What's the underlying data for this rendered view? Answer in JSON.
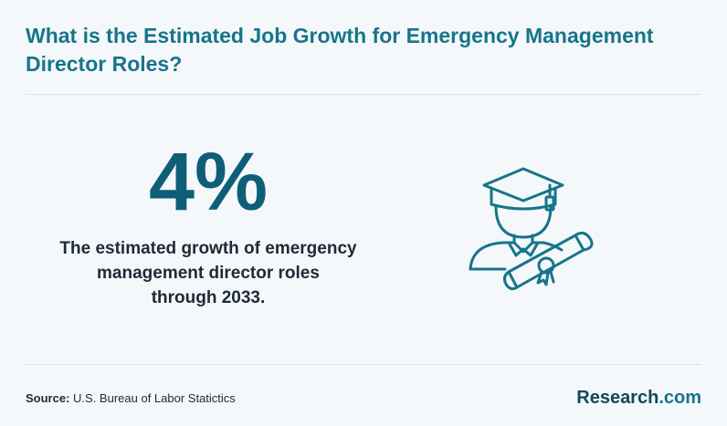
{
  "header": {
    "title": "What is the Estimated Job Growth for Emergency Management Director Roles?"
  },
  "stat": {
    "value": "4%",
    "description_lines": [
      "The estimated growth of emergency",
      "management director roles",
      "through 2033."
    ]
  },
  "illustration": {
    "icon": "graduate-with-diploma-icon",
    "stroke_color": "#16758a"
  },
  "footer": {
    "source_label": "Source:",
    "source_text": "U.S. Bureau of Labor Statictics",
    "brand_name": "Research",
    "brand_suffix": ".com"
  },
  "colors": {
    "accent": "#16758a",
    "stat": "#0e5e78",
    "text": "#1d2a38",
    "background": "#f5f8fa"
  }
}
